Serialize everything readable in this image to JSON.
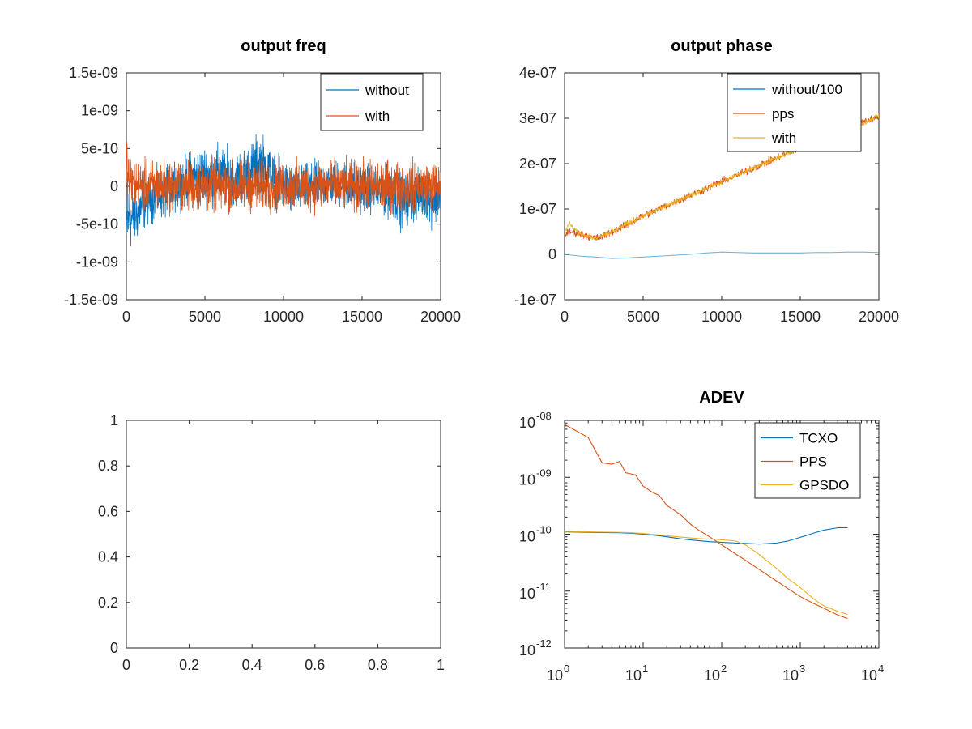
{
  "chart_data": [
    {
      "id": "freq",
      "type": "line",
      "title": "output freq",
      "xlim": [
        0,
        20000
      ],
      "ylim": [
        -1.5e-09,
        1.5e-09
      ],
      "xticks": [
        0,
        5000,
        10000,
        15000,
        20000
      ],
      "xtick_labels": [
        "0",
        "5000",
        "10000",
        "15000",
        "20000"
      ],
      "yticks": [
        -1.5e-09,
        -1e-09,
        -5e-10,
        0,
        5e-10,
        1e-09,
        1.5e-09
      ],
      "ytick_labels": [
        "-1.5e-09",
        "-1e-09",
        "-5e-10",
        "0",
        "5e-10",
        "1e-09",
        "1.5e-09"
      ],
      "legend_position": "top-right",
      "series": [
        {
          "name": "without",
          "color": "#0072BD",
          "kind": "noise",
          "x": [
            0,
            50,
            150,
            300,
            600,
            1000,
            1500,
            2000,
            2500,
            3000,
            3500,
            4000,
            5000,
            6000,
            7000,
            8000,
            8500,
            9000,
            9500,
            10000,
            11000,
            12000,
            13000,
            14000,
            15000,
            16000,
            17000,
            17500,
            18000,
            19000,
            19500,
            20000
          ],
          "y_center": [
            -7e-10,
            -5e-10,
            -4e-10,
            -4.5e-10,
            -4e-10,
            -2.5e-10,
            -1.5e-10,
            -1e-10,
            -1e-10,
            -5e-11,
            5e-11,
            1e-10,
            1.5e-10,
            1.5e-10,
            1e-10,
            2e-10,
            3e-10,
            2e-10,
            5e-11,
            0,
            -5e-11,
            0,
            5e-11,
            0,
            0,
            -5e-11,
            -1e-10,
            -2e-10,
            -1.5e-10,
            -1e-10,
            -2e-10,
            -1e-10
          ],
          "y_amp": [
            6e-10,
            4.5e-10,
            4e-10,
            3.5e-10,
            3.2e-10,
            3e-10,
            3e-10,
            3e-10,
            3e-10,
            3e-10,
            3e-10,
            3.2e-10,
            3.5e-10,
            3.5e-10,
            3.2e-10,
            3.5e-10,
            3.8e-10,
            3.5e-10,
            3e-10,
            3e-10,
            2.8e-10,
            2.8e-10,
            2.8e-10,
            2.8e-10,
            2.8e-10,
            2.8e-10,
            3e-10,
            3.2e-10,
            3e-10,
            2.8e-10,
            3e-10,
            3e-10
          ]
        },
        {
          "name": "with",
          "color": "#D95319",
          "kind": "noise",
          "x": [
            0,
            100,
            500,
            1000,
            3000,
            5000,
            8000,
            10000,
            13000,
            16000,
            18000,
            20000
          ],
          "y_center": [
            3e-10,
            1e-10,
            0,
            0,
            0,
            0,
            0,
            0,
            0,
            0,
            0,
            0
          ],
          "y_amp": [
            5e-10,
            4e-10,
            3.2e-10,
            3e-10,
            3e-10,
            3e-10,
            3e-10,
            3e-10,
            3e-10,
            3e-10,
            3e-10,
            3e-10
          ]
        }
      ]
    },
    {
      "id": "phase",
      "type": "line",
      "title": "output phase",
      "xlim": [
        0,
        20000
      ],
      "ylim": [
        -1e-07,
        4e-07
      ],
      "xticks": [
        0,
        5000,
        10000,
        15000,
        20000
      ],
      "xtick_labels": [
        "0",
        "5000",
        "10000",
        "15000",
        "20000"
      ],
      "yticks": [
        -1e-07,
        0,
        1e-07,
        2e-07,
        3e-07,
        4e-07
      ],
      "ytick_labels": [
        "-1e-07",
        "0",
        "1e-07",
        "2e-07",
        "3e-07",
        "4e-07"
      ],
      "legend_position": "top-right",
      "series": [
        {
          "name": "without/100",
          "color": "#0072BD",
          "kind": "smooth",
          "x": [
            0,
            1000,
            2000,
            3000,
            4000,
            5000,
            6000,
            7000,
            8000,
            9000,
            10000,
            11000,
            12000,
            13000,
            14000,
            15000,
            16000,
            17000,
            18000,
            19000,
            20000
          ],
          "y": [
            0,
            -4e-09,
            -6e-09,
            -9e-09,
            -8e-09,
            -6e-09,
            -4e-09,
            -2e-09,
            0,
            3e-09,
            5e-09,
            4e-09,
            3e-09,
            3e-09,
            3e-09,
            3e-09,
            4e-09,
            4e-09,
            5e-09,
            5e-09,
            4e-09
          ]
        },
        {
          "name": "pps",
          "color": "#D95319",
          "kind": "noise",
          "x": [
            0,
            500,
            1000,
            1500,
            2000,
            2500,
            3000,
            4000,
            5000,
            6000,
            7000,
            8000,
            9000,
            10000,
            11000,
            12000,
            13000,
            14000,
            15000,
            16000,
            17000,
            18000,
            19000,
            20000
          ],
          "y_center": [
            4.5e-08,
            5e-08,
            4.5e-08,
            4e-08,
            3.5e-08,
            4e-08,
            5e-08,
            6.5e-08,
            8.5e-08,
            1e-07,
            1.15e-07,
            1.3e-07,
            1.45e-07,
            1.6e-07,
            1.75e-07,
            1.9e-07,
            2.05e-07,
            2.2e-07,
            2.35e-07,
            2.5e-07,
            2.6e-07,
            2.75e-07,
            2.9e-07,
            3.05e-07
          ],
          "y_amp": [
            8e-09,
            8e-09,
            8e-09,
            8e-09,
            8e-09,
            8e-09,
            8e-09,
            8e-09,
            8e-09,
            8e-09,
            8e-09,
            8e-09,
            8e-09,
            8e-09,
            8e-09,
            8e-09,
            8e-09,
            8e-09,
            8e-09,
            8e-09,
            8e-09,
            8e-09,
            8e-09,
            8e-09
          ]
        },
        {
          "name": "with",
          "color": "#EDB120",
          "kind": "noise",
          "x": [
            0,
            300,
            500,
            800,
            1000,
            1500,
            2000,
            3000,
            5000,
            8000,
            10000,
            13000,
            16000,
            18000,
            20000
          ],
          "y_center": [
            5e-08,
            6.8e-08,
            6e-08,
            5e-08,
            4.5e-08,
            4e-08,
            3.5e-08,
            5e-08,
            8.5e-08,
            1.3e-07,
            1.6e-07,
            2.05e-07,
            2.5e-07,
            2.75e-07,
            3.05e-07
          ],
          "y_amp": [
            5e-09,
            5e-09,
            5e-09,
            5e-09,
            5e-09,
            5e-09,
            5e-09,
            5e-09,
            5e-09,
            5e-09,
            5e-09,
            5e-09,
            5e-09,
            5e-09,
            5e-09
          ]
        }
      ]
    },
    {
      "id": "empty",
      "type": "line",
      "title": "",
      "xlim": [
        0,
        1
      ],
      "ylim": [
        0,
        1
      ],
      "xticks": [
        0,
        0.2,
        0.4,
        0.6,
        0.8,
        1
      ],
      "xtick_labels": [
        "0",
        "0.2",
        "0.4",
        "0.6",
        "0.8",
        "1"
      ],
      "yticks": [
        0,
        0.2,
        0.4,
        0.6,
        0.8,
        1
      ],
      "ytick_labels": [
        "0",
        "0.2",
        "0.4",
        "0.6",
        "0.8",
        "1"
      ],
      "series": []
    },
    {
      "id": "adev",
      "type": "line",
      "title": "ADEV",
      "xscale": "log",
      "yscale": "log",
      "xlim": [
        1,
        10000
      ],
      "ylim": [
        1e-12,
        1e-08
      ],
      "xtick_exps": [
        "0",
        "1",
        "2",
        "3",
        "4"
      ],
      "ytick_exps": [
        "-12",
        "-11",
        "-10",
        "-09",
        "-08"
      ],
      "tick_base": "10",
      "legend_position": "top-right",
      "series": [
        {
          "name": "TCXO",
          "color": "#0072BD",
          "kind": "smooth",
          "x": [
            1,
            2,
            3,
            5,
            7,
            10,
            15,
            20,
            30,
            50,
            70,
            100,
            150,
            200,
            300,
            500,
            700,
            1000,
            1500,
            2000,
            3000,
            4000
          ],
          "y": [
            1.1e-10,
            1.08e-10,
            1.07e-10,
            1.06e-10,
            1.04e-10,
            1e-10,
            9.5e-11,
            9e-11,
            8.3e-11,
            7.7e-11,
            7.4e-11,
            7.2e-11,
            7e-11,
            6.9e-11,
            6.7e-11,
            7e-11,
            7.6e-11,
            8.8e-11,
            1.05e-10,
            1.18e-10,
            1.3e-10,
            1.3e-10
          ]
        },
        {
          "name": "PPS",
          "color": "#D95319",
          "kind": "smooth",
          "x": [
            1,
            2,
            3,
            4,
            5,
            6,
            7,
            8,
            10,
            13,
            16,
            20,
            30,
            40,
            50,
            70,
            100,
            150,
            200,
            300,
            500,
            700,
            1000,
            1500,
            2000,
            3000,
            4000
          ],
          "y": [
            8.5e-09,
            5e-09,
            1.8e-09,
            1.7e-09,
            1.9e-09,
            1.2e-09,
            1.15e-09,
            1.1e-09,
            7e-10,
            5.5e-10,
            4.8e-10,
            3.2e-10,
            2.2e-10,
            1.5e-10,
            1.2e-10,
            9e-11,
            6.5e-11,
            4.5e-11,
            3.5e-11,
            2.4e-11,
            1.5e-11,
            1.1e-11,
            8e-12,
            6e-12,
            5e-12,
            3.8e-12,
            3.3e-12
          ]
        },
        {
          "name": "GPSDO",
          "color": "#EDB120",
          "kind": "smooth",
          "x": [
            1,
            2,
            3,
            5,
            7,
            10,
            15,
            20,
            30,
            50,
            70,
            100,
            150,
            200,
            300,
            500,
            700,
            1000,
            1500,
            2000,
            3000,
            4000
          ],
          "y": [
            1.12e-10,
            1.1e-10,
            1.09e-10,
            1.08e-10,
            1.06e-10,
            1.03e-10,
            9.8e-11,
            9.4e-11,
            8.9e-11,
            8.4e-11,
            8.2e-11,
            8e-11,
            7.6e-11,
            6.5e-11,
            4.4e-11,
            2.5e-11,
            1.65e-11,
            1.15e-11,
            7.2e-12,
            5.5e-12,
            4.4e-12,
            3.9e-12
          ]
        }
      ]
    }
  ]
}
